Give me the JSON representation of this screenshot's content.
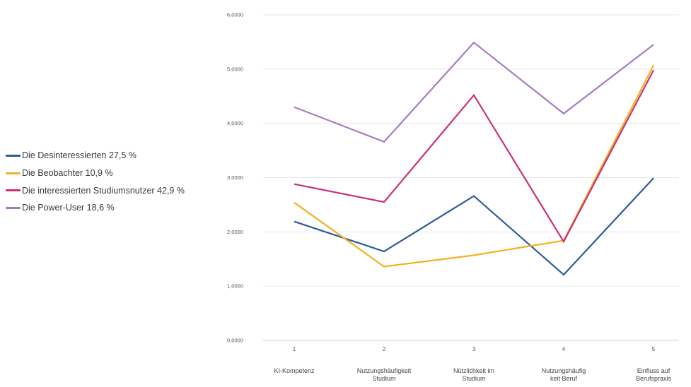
{
  "chart_data": {
    "type": "line",
    "title": "",
    "xlabel": "",
    "ylabel": "",
    "ylim": [
      0,
      6
    ],
    "yticks": [
      "0,0000",
      "1,0000",
      "2,0000",
      "3,0000",
      "4,0000",
      "5,0000",
      "6,0000"
    ],
    "x": [
      "1",
      "2",
      "3",
      "4",
      "5"
    ],
    "categories": [
      [
        "KI-Kompetenz"
      ],
      [
        "Nutzungshäufigkeit",
        "Studium"
      ],
      [
        "Nützlichkeit im",
        "Studium"
      ],
      [
        "Nutzungshäufig",
        "keit Beruf"
      ],
      [
        "Einfluss auf",
        "Berufspraxis"
      ]
    ],
    "grid": true,
    "legend_position": "left",
    "series": [
      {
        "name": "Die Desinteressierten 27,5 %",
        "color": "#2e5b9a",
        "values": [
          2.19,
          1.64,
          2.66,
          1.21,
          2.99
        ]
      },
      {
        "name": "Die Beobachter 10,9 %",
        "color": "#f2b21f",
        "values": [
          2.54,
          1.36,
          1.57,
          1.84,
          5.07
        ]
      },
      {
        "name": "Die interessierten Studiumsnutzer 42,9 %",
        "color": "#c8307b",
        "values": [
          2.88,
          2.55,
          4.52,
          1.82,
          4.98
        ]
      },
      {
        "name": "Die Power-User 18,6 %",
        "color": "#a57cc2",
        "values": [
          4.3,
          3.66,
          5.49,
          4.18,
          5.45
        ]
      }
    ]
  }
}
